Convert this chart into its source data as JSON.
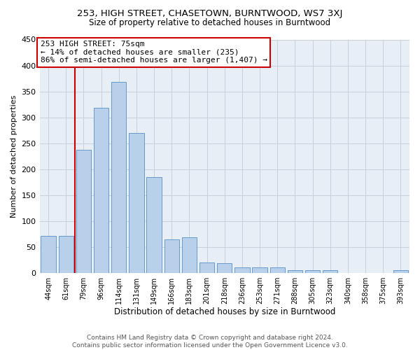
{
  "title": "253, HIGH STREET, CHASETOWN, BURNTWOOD, WS7 3XJ",
  "subtitle": "Size of property relative to detached houses in Burntwood",
  "xlabel": "Distribution of detached houses by size in Burntwood",
  "ylabel": "Number of detached properties",
  "categories": [
    "44sqm",
    "61sqm",
    "79sqm",
    "96sqm",
    "114sqm",
    "131sqm",
    "149sqm",
    "166sqm",
    "183sqm",
    "201sqm",
    "218sqm",
    "236sqm",
    "253sqm",
    "271sqm",
    "288sqm",
    "305sqm",
    "323sqm",
    "340sqm",
    "358sqm",
    "375sqm",
    "393sqm"
  ],
  "values": [
    71,
    71,
    237,
    318,
    368,
    270,
    184,
    65,
    68,
    20,
    18,
    10,
    10,
    10,
    5,
    5,
    5,
    0,
    0,
    0,
    5
  ],
  "bar_color": "#b8d0ea",
  "bar_edge_color": "#6699cc",
  "vline_color": "#cc0000",
  "annotation_line1": "253 HIGH STREET: 75sqm",
  "annotation_line2": "← 14% of detached houses are smaller (235)",
  "annotation_line3": "86% of semi-detached houses are larger (1,407) →",
  "annotation_box_edgecolor": "#cc0000",
  "ylim": [
    0,
    450
  ],
  "yticks": [
    0,
    50,
    100,
    150,
    200,
    250,
    300,
    350,
    400,
    450
  ],
  "grid_color": "#c8d0dc",
  "bg_color": "#e8eef6",
  "footer_line1": "Contains HM Land Registry data © Crown copyright and database right 2024.",
  "footer_line2": "Contains public sector information licensed under the Open Government Licence v3.0.",
  "title_fontsize": 9.5,
  "subtitle_fontsize": 8.5,
  "xlabel_fontsize": 8.5,
  "ylabel_fontsize": 8,
  "xtick_fontsize": 7,
  "ytick_fontsize": 8,
  "annot_fontsize": 8,
  "footer_fontsize": 6.5,
  "vline_bar_index": 2
}
